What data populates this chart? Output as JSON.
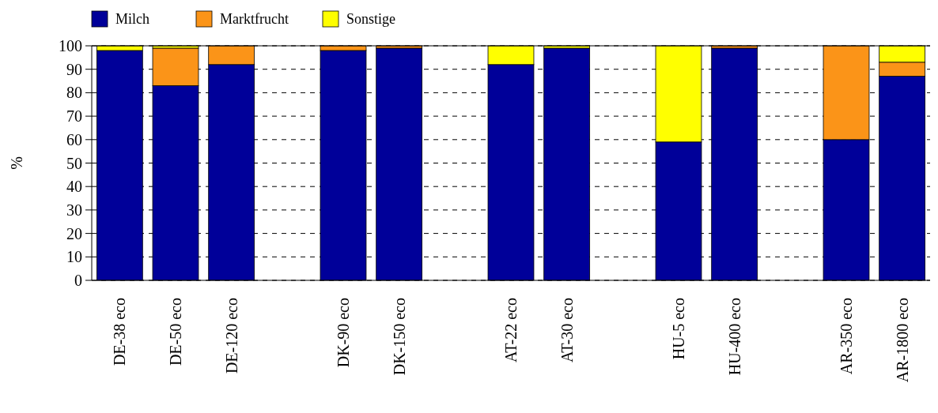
{
  "chart_data": {
    "type": "bar",
    "stacked": true,
    "ylabel": "%",
    "categories": [
      "DE-38 eco",
      "DE-50 eco",
      "DE-120 eco",
      null,
      "DK-90 eco",
      "DK-150 eco",
      null,
      "AT-22 eco",
      "AT-30 eco",
      null,
      "HU-5 eco",
      "HU-400 eco",
      null,
      "AR-350 eco",
      "AR-1800 eco"
    ],
    "series": [
      {
        "name": "Milch",
        "color": "#000099",
        "values": [
          98,
          83,
          92,
          null,
          98,
          99,
          null,
          92,
          99,
          null,
          59,
          99,
          null,
          60,
          87
        ]
      },
      {
        "name": "Marktfrucht",
        "color": "#fb9418",
        "values": [
          0,
          16,
          8,
          null,
          2,
          1,
          null,
          0,
          0,
          null,
          0,
          1,
          null,
          40,
          6
        ]
      },
      {
        "name": "Sonstige",
        "color": "#ffff00",
        "values": [
          2,
          1,
          0,
          null,
          0,
          0,
          null,
          8,
          1,
          null,
          41,
          0,
          null,
          0,
          7
        ]
      }
    ],
    "ylim": [
      0,
      100
    ],
    "yticks": [
      0,
      10,
      20,
      30,
      40,
      50,
      60,
      70,
      80,
      90,
      100
    ],
    "grid": "y",
    "legend": "top left"
  }
}
